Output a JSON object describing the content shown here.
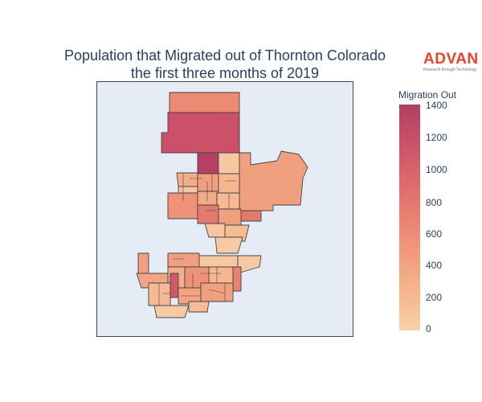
{
  "title_line1": "Population that Migrated out of Thornton Colorado",
  "title_line2": "the first three months of 2019",
  "logo": {
    "main": "ADVAN",
    "sub": "Research through Technology"
  },
  "colorbar": {
    "title": "Migration Out",
    "ticks": [
      "1400",
      "1200",
      "1000",
      "800",
      "600",
      "400",
      "200",
      "0"
    ],
    "min": 0,
    "max": 1400,
    "colors": [
      "#f6d2a9",
      "#f5b78e",
      "#f19c7c",
      "#ea8171",
      "#dd686c",
      "#ca5268",
      "#b13f64"
    ]
  },
  "chart_data": {
    "type": "choropleth",
    "metric": "Migration Out",
    "range": [
      0,
      1400
    ],
    "colorscale": "sunsetdark"
  }
}
